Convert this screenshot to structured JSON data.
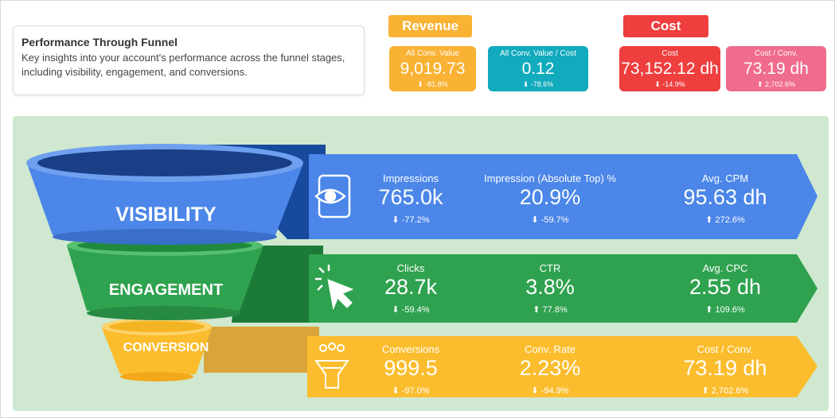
{
  "intro": {
    "title": "Performance Through Funnel",
    "description": "Key insights into your account's performance across the funnel stages, including visibility, engagement, and conversions."
  },
  "revenue": {
    "header": "Revenue",
    "cards": [
      {
        "label": "All Conv. Value",
        "value": "9,019.73",
        "change": "⬇ -81.8%"
      },
      {
        "label": "All Conv. Value / Cost",
        "value": "0.12",
        "change": "⬇ -78.6%"
      }
    ]
  },
  "cost": {
    "header": "Cost",
    "cards": [
      {
        "label": "Cost",
        "value": "73,152.12 dh",
        "change": "⬇ -14.9%"
      },
      {
        "label": "Cost / Conv.",
        "value": "73.19 dh",
        "change": "⬆ 2,702.6%"
      }
    ]
  },
  "funnel": {
    "visibility": "VISIBILITY",
    "engagement": "ENGAGEMENT",
    "conversion": "CONVERSION"
  },
  "rows": {
    "visibility": [
      {
        "label": "Impressions",
        "value": "765.0k",
        "change": "⬇ -77.2%"
      },
      {
        "label": "Impression (Absolute Top) %",
        "value": "20.9%",
        "change": "⬇ -59.7%"
      },
      {
        "label": "Avg. CPM",
        "value": "95.63 dh",
        "change": "⬆ 272.6%"
      }
    ],
    "engagement": [
      {
        "label": "Clicks",
        "value": "28.7k",
        "change": "⬇ -59.4%"
      },
      {
        "label": "CTR",
        "value": "3.8%",
        "change": "⬆ 77.8%"
      },
      {
        "label": "Avg. CPC",
        "value": "2.55 dh",
        "change": "⬆ 109.6%"
      }
    ],
    "conversion": [
      {
        "label": "Conversions",
        "value": "999.5",
        "change": "⬇ -97.0%"
      },
      {
        "label": "Conv. Rate",
        "value": "2.23%",
        "change": "⬇ -94.9%"
      },
      {
        "label": "Cost / Conv.",
        "value": "73.19 dh",
        "change": "⬆ 2,702.6%"
      }
    ]
  },
  "icons": {
    "visibility": "eye-phone-icon",
    "engagement": "cursor-click-icon",
    "conversion": "group-funnel-icon"
  },
  "colors": {
    "blue": "#4b86e8",
    "green": "#2fa24f",
    "yellow": "#fbbd2e",
    "teal": "#12aabd",
    "red": "#ee3e3e",
    "pink": "#f06c8f",
    "orange": "#f9b233"
  }
}
